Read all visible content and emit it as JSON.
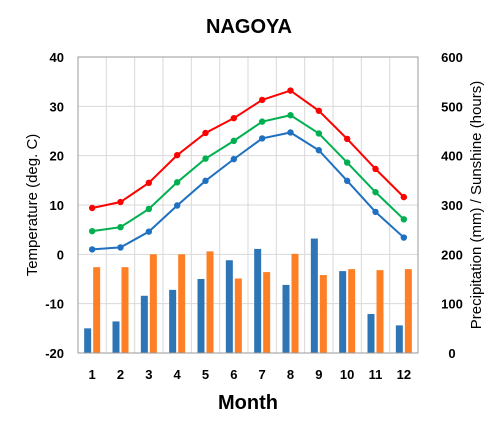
{
  "chart_data": {
    "type": "bar",
    "title": "NAGOYA",
    "xlabel": "Month",
    "ylabel_left": "Temperature (deg. C)",
    "ylabel_right": "Precipitation (mm) / Sunshine (hours)",
    "categories": [
      "1",
      "2",
      "3",
      "4",
      "5",
      "6",
      "7",
      "8",
      "9",
      "10",
      "11",
      "12"
    ],
    "ylim_left": [
      -20,
      40
    ],
    "ylim_right": [
      0,
      600
    ],
    "yticks_left": [
      "40",
      "30",
      "20",
      "10",
      "0",
      "-10",
      "-20"
    ],
    "yticks_right": [
      "600",
      "500",
      "400",
      "300",
      "200",
      "100",
      "0"
    ],
    "grid": true,
    "line_series": [
      {
        "values": [
          9.4,
          10.6,
          14.5,
          20.1,
          24.6,
          27.6,
          31.3,
          33.2,
          29.1,
          23.4,
          17.3,
          11.6
        ],
        "color": "#ff0000"
      },
      {
        "values": [
          4.7,
          5.5,
          9.2,
          14.6,
          19.4,
          23.0,
          26.9,
          28.2,
          24.5,
          18.6,
          12.6,
          7.1
        ],
        "color": "#00b050"
      },
      {
        "values": [
          1.0,
          1.4,
          4.6,
          9.9,
          14.9,
          19.3,
          23.5,
          24.7,
          21.1,
          14.9,
          8.6,
          3.4
        ],
        "color": "#1f70c1"
      }
    ],
    "bar_series": [
      {
        "values": [
          50,
          64,
          116,
          128,
          150,
          188,
          211,
          138,
          232,
          166,
          79,
          56
        ],
        "color": "#2e75b6"
      },
      {
        "values": [
          174,
          174,
          200,
          200,
          206,
          151,
          164,
          201,
          158,
          170,
          168,
          170
        ],
        "color": "#ff7f27"
      }
    ]
  }
}
